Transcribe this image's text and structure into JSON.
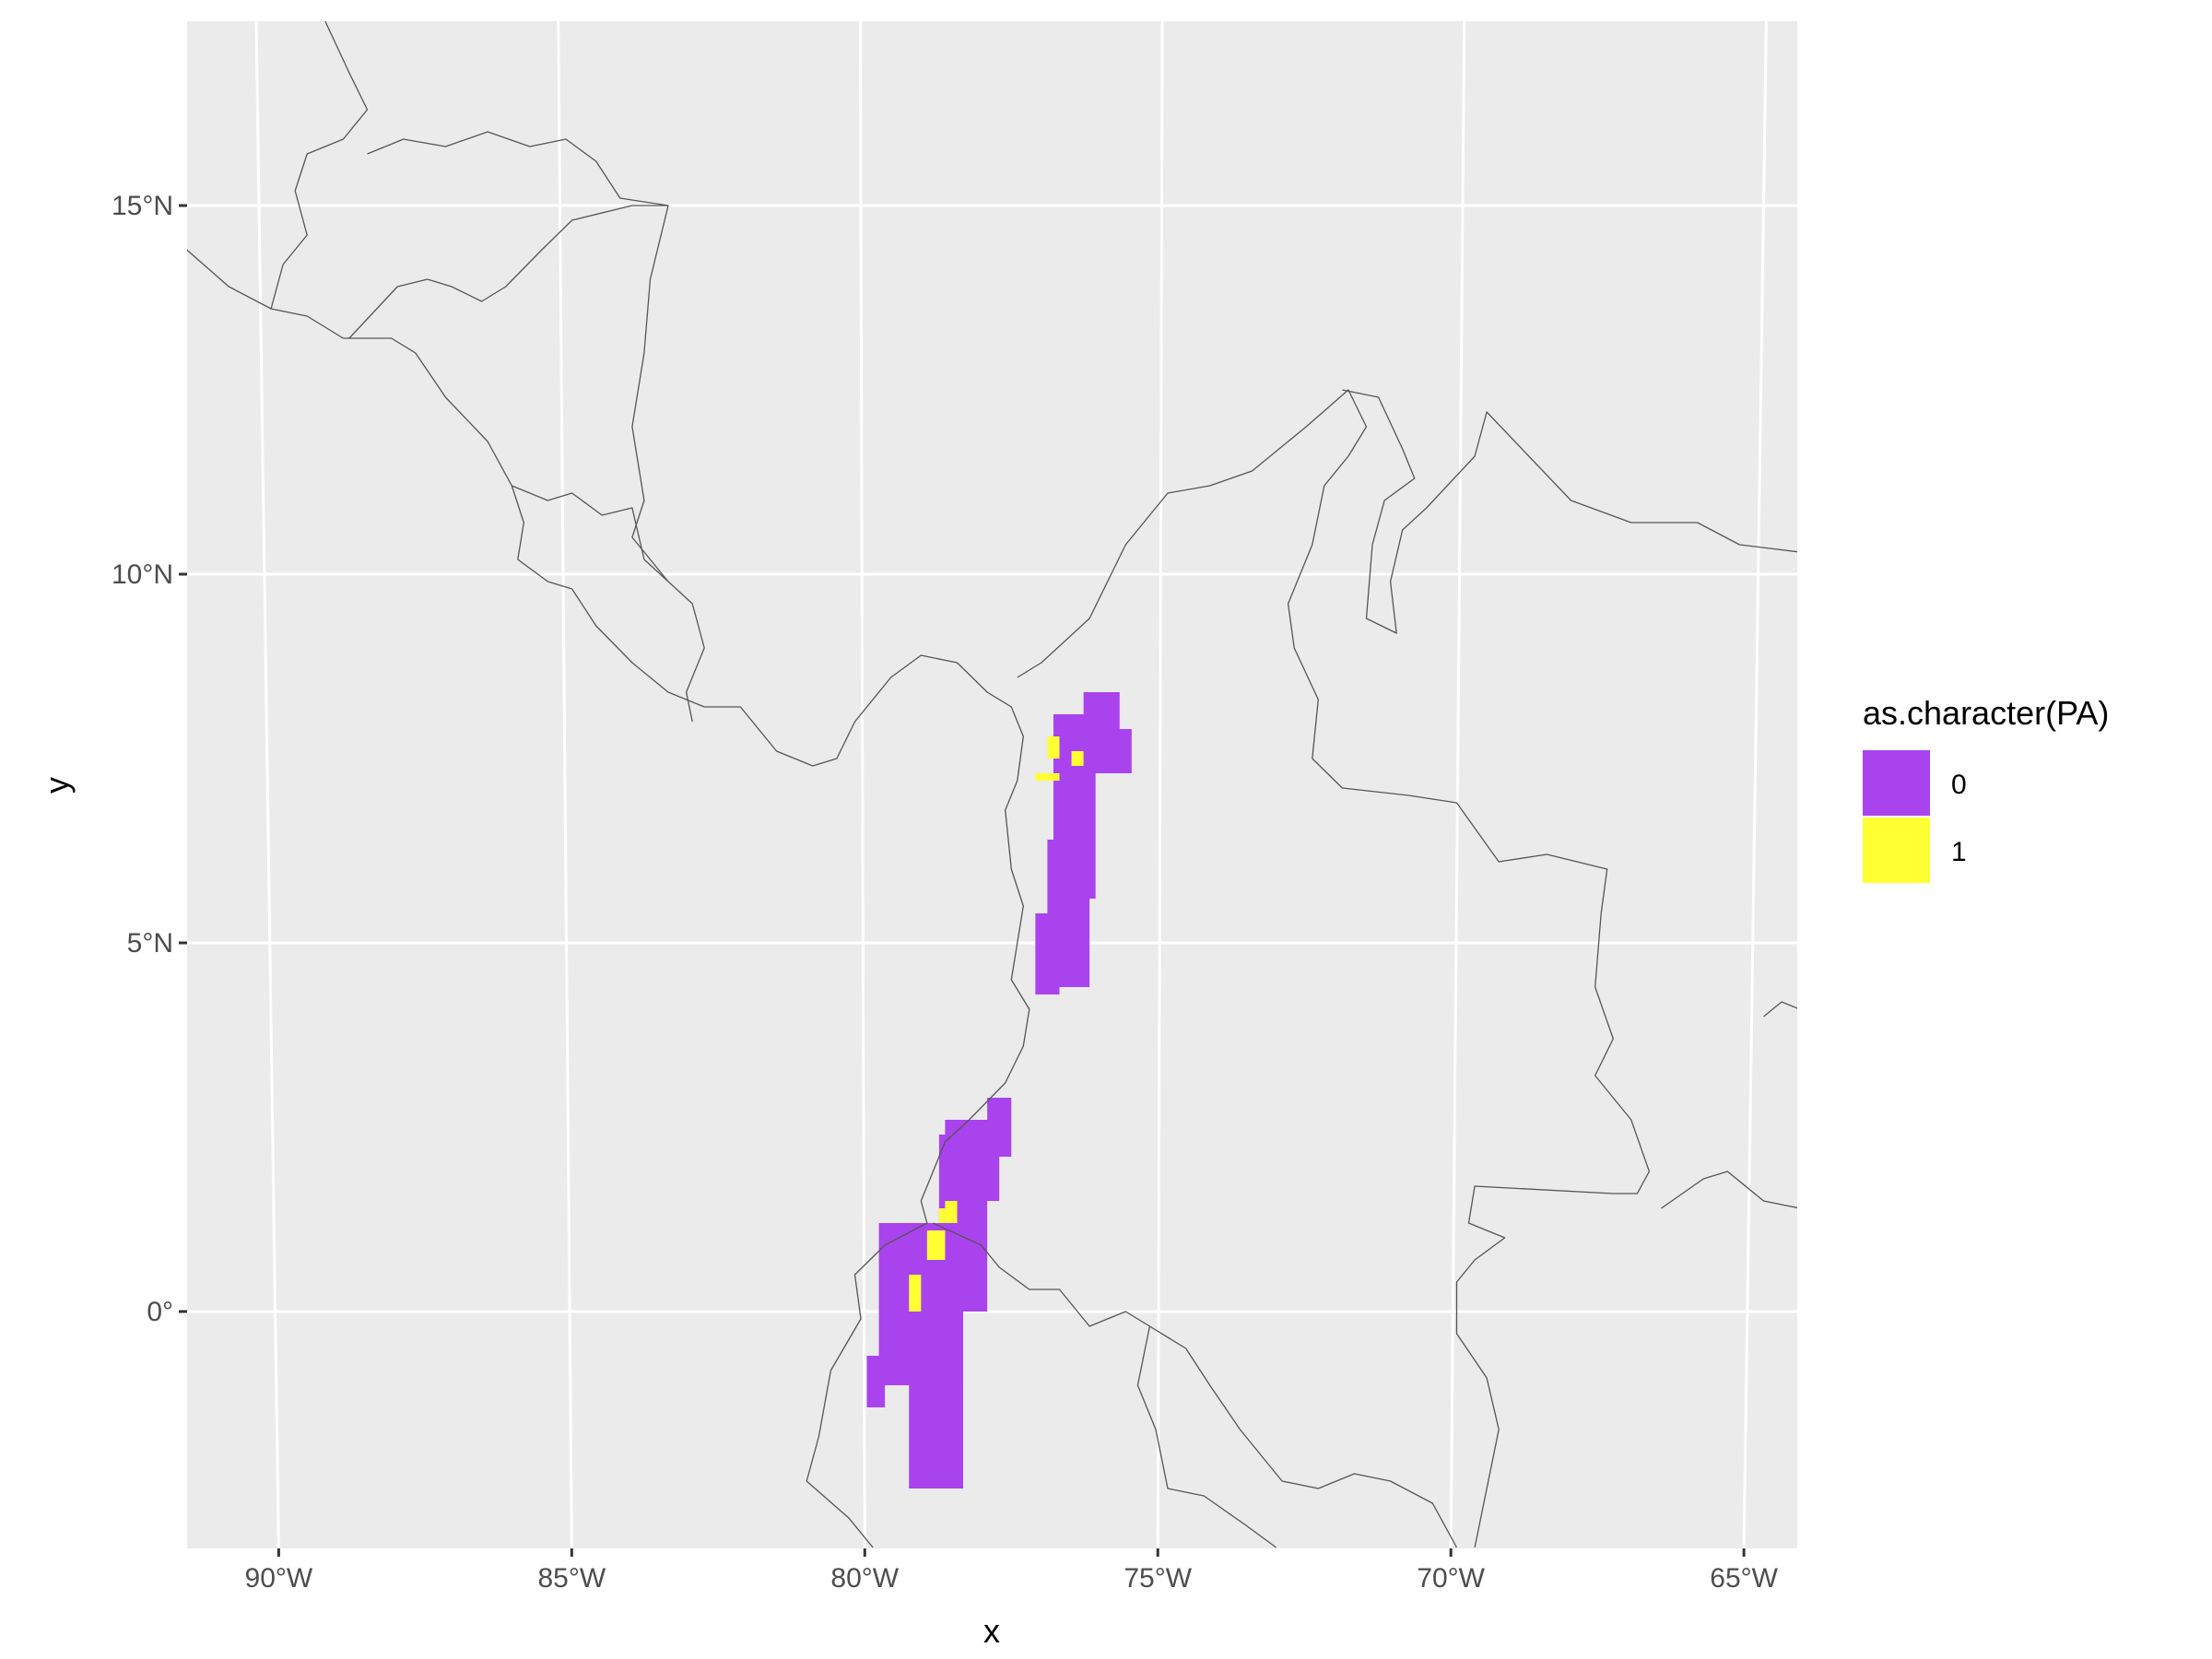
{
  "chart_data": {
    "type": "heatmap",
    "xlabel": "x",
    "ylabel": "y",
    "x_ticks": [
      "90°W",
      "85°W",
      "80°W",
      "75°W",
      "70°W",
      "65°W"
    ],
    "y_ticks": [
      "0°",
      "5°N",
      "10°N",
      "15°N"
    ],
    "x_tick_values": [
      -90,
      -85,
      -80,
      -75,
      -70,
      -65
    ],
    "y_tick_values": [
      0,
      5,
      10,
      15
    ],
    "xlim": [
      -91.2,
      -64.4
    ],
    "ylim": [
      -3.2,
      17.5
    ],
    "grid": true,
    "legend": {
      "title": "as.character(PA)",
      "placement": "right",
      "entries": [
        {
          "label": "0",
          "color": "#a943ee"
        },
        {
          "label": "1",
          "color": "#ffff33"
        }
      ]
    },
    "colors": {
      "panel_background": "#ebebeb",
      "grid": "#ffffff",
      "country_border": "#555555",
      "absence": "#a943ee",
      "presence": "#ffff33"
    },
    "cell_size_deg": 0.25,
    "absence_cells": [
      [
        -76.8,
        4.4,
        -76.2,
        8.1
      ],
      [
        -76.9,
        5.2,
        -76.4,
        6.4
      ],
      [
        -77.1,
        4.3,
        -76.7,
        5.4
      ],
      [
        -76.6,
        5.6,
        -76.1,
        8.0
      ],
      [
        -76.3,
        7.3,
        -75.7,
        8.4
      ],
      [
        -75.9,
        7.3,
        -75.5,
        7.9
      ],
      [
        -79.9,
        -1.3,
        -79.6,
        -0.6
      ],
      [
        -79.7,
        -1.0,
        -78.3,
        1.2
      ],
      [
        -79.2,
        -2.4,
        -78.3,
        0.1
      ],
      [
        -78.9,
        -2.0,
        -78.6,
        -1.2
      ],
      [
        -78.7,
        0.0,
        -77.9,
        2.4
      ],
      [
        -78.2,
        1.5,
        -77.7,
        2.6
      ],
      [
        -77.9,
        2.1,
        -77.5,
        2.9
      ],
      [
        -78.6,
        1.2,
        -78.0,
        2.6
      ]
    ],
    "presence_cells": [
      [
        -76.9,
        7.5,
        -76.7,
        7.8
      ],
      [
        -77.1,
        7.2,
        -76.7,
        7.3
      ],
      [
        -76.5,
        7.4,
        -76.3,
        7.6
      ],
      [
        -78.6,
        1.2,
        -78.4,
        1.5
      ],
      [
        -78.7,
        1.2,
        -78.6,
        1.4
      ],
      [
        -78.9,
        0.7,
        -78.6,
        1.1
      ],
      [
        -79.2,
        0.0,
        -79.0,
        0.5
      ]
    ],
    "country_borders": [
      [
        [
          -91.2,
          14.4
        ],
        [
          -90.5,
          13.9
        ],
        [
          -89.8,
          13.6
        ],
        [
          -89.2,
          13.5
        ],
        [
          -88.6,
          13.2
        ],
        [
          -87.8,
          13.2
        ],
        [
          -87.4,
          13.0
        ],
        [
          -86.9,
          12.4
        ],
        [
          -86.2,
          11.8
        ],
        [
          -85.8,
          11.2
        ],
        [
          -85.6,
          10.7
        ],
        [
          -85.7,
          10.2
        ],
        [
          -85.2,
          9.9
        ],
        [
          -84.8,
          9.8
        ],
        [
          -84.4,
          9.3
        ],
        [
          -83.8,
          8.8
        ],
        [
          -83.2,
          8.4
        ],
        [
          -82.6,
          8.2
        ],
        [
          -82.0,
          8.2
        ],
        [
          -81.4,
          7.6
        ],
        [
          -80.8,
          7.4
        ],
        [
          -80.4,
          7.5
        ],
        [
          -80.1,
          8.0
        ],
        [
          -79.5,
          8.6
        ],
        [
          -79.0,
          8.9
        ],
        [
          -78.4,
          8.8
        ],
        [
          -77.9,
          8.4
        ],
        [
          -77.5,
          8.2
        ],
        [
          -77.3,
          7.8
        ],
        [
          -77.4,
          7.2
        ],
        [
          -77.6,
          6.8
        ],
        [
          -77.5,
          6.0
        ],
        [
          -77.3,
          5.5
        ],
        [
          -77.5,
          4.5
        ],
        [
          -77.2,
          4.1
        ],
        [
          -77.3,
          3.6
        ],
        [
          -77.6,
          3.1
        ],
        [
          -78.2,
          2.6
        ],
        [
          -78.6,
          2.3
        ],
        [
          -78.8,
          1.9
        ],
        [
          -79.0,
          1.5
        ],
        [
          -78.9,
          1.2
        ],
        [
          -79.6,
          0.9
        ],
        [
          -80.1,
          0.5
        ],
        [
          -80.0,
          -0.1
        ],
        [
          -80.5,
          -0.8
        ],
        [
          -80.7,
          -1.7
        ],
        [
          -80.9,
          -2.3
        ],
        [
          -80.2,
          -2.8
        ],
        [
          -79.8,
          -3.2
        ]
      ],
      [
        [
          -88.9,
          17.5
        ],
        [
          -88.5,
          16.8
        ],
        [
          -88.2,
          16.3
        ],
        [
          -88.6,
          15.9
        ],
        [
          -89.2,
          15.7
        ],
        [
          -89.4,
          15.2
        ],
        [
          -89.2,
          14.6
        ],
        [
          -89.6,
          14.2
        ],
        [
          -89.8,
          13.6
        ]
      ],
      [
        [
          -88.2,
          15.7
        ],
        [
          -87.6,
          15.9
        ],
        [
          -86.9,
          15.8
        ],
        [
          -86.2,
          16.0
        ],
        [
          -85.5,
          15.8
        ],
        [
          -84.9,
          15.9
        ],
        [
          -84.4,
          15.6
        ],
        [
          -84.0,
          15.1
        ],
        [
          -83.2,
          15.0
        ]
      ],
      [
        [
          -88.5,
          13.2
        ],
        [
          -87.7,
          13.9
        ],
        [
          -87.2,
          14.0
        ],
        [
          -86.8,
          13.9
        ],
        [
          -86.3,
          13.7
        ],
        [
          -85.9,
          13.9
        ],
        [
          -85.3,
          14.4
        ],
        [
          -84.8,
          14.8
        ],
        [
          -83.8,
          15.0
        ],
        [
          -83.2,
          15.0
        ],
        [
          -83.5,
          14.0
        ],
        [
          -83.6,
          13.0
        ],
        [
          -83.8,
          12.0
        ],
        [
          -83.6,
          11.0
        ],
        [
          -83.8,
          10.5
        ],
        [
          -83.2,
          9.9
        ]
      ],
      [
        [
          -85.8,
          11.2
        ],
        [
          -85.2,
          11.0
        ],
        [
          -84.8,
          11.1
        ],
        [
          -84.3,
          10.8
        ],
        [
          -83.8,
          10.9
        ],
        [
          -83.6,
          10.2
        ],
        [
          -82.8,
          9.6
        ],
        [
          -82.6,
          9.0
        ],
        [
          -82.9,
          8.4
        ],
        [
          -82.8,
          8.0
        ]
      ],
      [
        [
          -77.4,
          8.6
        ],
        [
          -77.0,
          8.8
        ],
        [
          -76.2,
          9.4
        ],
        [
          -75.6,
          10.4
        ],
        [
          -74.9,
          11.1
        ],
        [
          -74.2,
          11.2
        ],
        [
          -73.5,
          11.4
        ],
        [
          -72.6,
          12.0
        ],
        [
          -71.9,
          12.5
        ],
        [
          -71.6,
          12.0
        ],
        [
          -71.9,
          11.6
        ],
        [
          -72.3,
          11.2
        ],
        [
          -72.5,
          10.4
        ],
        [
          -72.9,
          9.6
        ],
        [
          -72.8,
          9.0
        ],
        [
          -72.4,
          8.3
        ],
        [
          -72.5,
          7.5
        ],
        [
          -72.0,
          7.1
        ],
        [
          -70.9,
          7.0
        ],
        [
          -70.1,
          6.9
        ],
        [
          -69.4,
          6.1
        ],
        [
          -68.6,
          6.2
        ],
        [
          -67.6,
          6.0
        ],
        [
          -67.7,
          5.4
        ],
        [
          -67.8,
          4.4
        ],
        [
          -67.5,
          3.7
        ],
        [
          -67.8,
          3.2
        ],
        [
          -67.2,
          2.6
        ],
        [
          -66.9,
          1.9
        ],
        [
          -67.1,
          1.6
        ],
        [
          -67.5,
          1.6
        ],
        [
          -69.8,
          1.7
        ],
        [
          -69.9,
          1.2
        ],
        [
          -69.3,
          1.0
        ],
        [
          -69.8,
          0.7
        ],
        [
          -70.1,
          0.4
        ],
        [
          -70.1,
          -0.3
        ],
        [
          -69.6,
          -0.9
        ],
        [
          -69.4,
          -1.6
        ],
        [
          -69.8,
          -3.2
        ]
      ],
      [
        [
          -72.0,
          12.5
        ],
        [
          -71.4,
          12.4
        ],
        [
          -71.0,
          11.7
        ],
        [
          -70.8,
          11.3
        ],
        [
          -71.3,
          11.0
        ],
        [
          -71.5,
          10.4
        ],
        [
          -71.6,
          9.4
        ],
        [
          -71.1,
          9.2
        ],
        [
          -71.2,
          9.9
        ],
        [
          -71.0,
          10.6
        ],
        [
          -70.6,
          10.9
        ],
        [
          -69.8,
          11.6
        ],
        [
          -69.6,
          12.2
        ],
        [
          -68.9,
          11.6
        ],
        [
          -68.2,
          11.0
        ],
        [
          -67.2,
          10.7
        ],
        [
          -66.1,
          10.7
        ],
        [
          -65.4,
          10.4
        ],
        [
          -64.4,
          10.3
        ]
      ],
      [
        [
          -64.4,
          4.1
        ],
        [
          -64.7,
          4.2
        ],
        [
          -65.0,
          4.0
        ]
      ],
      [
        [
          -78.8,
          1.2
        ],
        [
          -78.0,
          0.9
        ],
        [
          -77.7,
          0.6
        ],
        [
          -77.2,
          0.3
        ],
        [
          -76.7,
          0.3
        ],
        [
          -76.2,
          -0.2
        ],
        [
          -75.6,
          0.0
        ],
        [
          -75.2,
          -0.2
        ],
        [
          -75.4,
          -1.0
        ],
        [
          -75.1,
          -1.6
        ],
        [
          -74.9,
          -2.4
        ],
        [
          -74.3,
          -2.5
        ],
        [
          -73.6,
          -2.9
        ],
        [
          -73.1,
          -3.2
        ]
      ],
      [
        [
          -75.2,
          -0.2
        ],
        [
          -74.6,
          -0.5
        ],
        [
          -74.2,
          -1.0
        ],
        [
          -73.7,
          -1.6
        ],
        [
          -73.0,
          -2.3
        ],
        [
          -72.4,
          -2.4
        ],
        [
          -71.8,
          -2.2
        ],
        [
          -71.2,
          -2.3
        ],
        [
          -70.5,
          -2.6
        ],
        [
          -70.1,
          -3.2
        ]
      ],
      [
        [
          -66.7,
          1.4
        ],
        [
          -66.0,
          1.8
        ],
        [
          -65.6,
          1.9
        ],
        [
          -65.0,
          1.5
        ],
        [
          -64.4,
          1.4
        ]
      ]
    ]
  }
}
